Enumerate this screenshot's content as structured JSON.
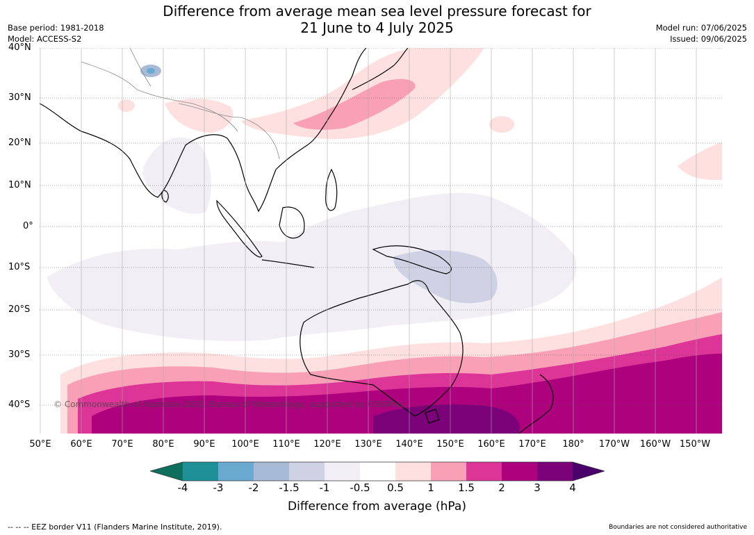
{
  "header": {
    "title": "Difference from average mean sea level pressure forecast for\n21 June to 4 July 2025",
    "base_period": "Base period: 1981-2018",
    "model": "Model: ACCESS-S2",
    "model_run": "Model run: 07/06/2025",
    "issued": "Issued: 09/06/2025"
  },
  "map": {
    "lat_ticks": [
      "40°N",
      "30°N",
      "20°N",
      "10°N",
      "0°",
      "10°S",
      "20°S",
      "30°S",
      "40°S"
    ],
    "lon_ticks": [
      "50°E",
      "60°E",
      "70°E",
      "80°E",
      "90°E",
      "100°E",
      "110°E",
      "120°E",
      "130°E",
      "140°E",
      "150°E",
      "160°E",
      "170°E",
      "180°",
      "170°W",
      "160°W",
      "150°W"
    ],
    "copyright": "© Commonwealth of Australia 2025, Bureau of Meteorology, supported by COSPPac"
  },
  "legend": {
    "title": "Difference from average (hPa)",
    "labels": [
      "-4",
      "-3",
      "-2",
      "-1.5",
      "-1",
      "-0.5",
      "0.5",
      "1",
      "1.5",
      "2",
      "3",
      "4"
    ],
    "colors": {
      "below_-4": "#0e6f5e",
      "-4_-3": "#1f8f98",
      "-3_-2": "#6aaad0",
      "-2_-1.5": "#a7bbd6",
      "-1.5_-1": "#cfd2e4",
      "-1_-0.5": "#f1eef5",
      "-0.5_0.5": "#ffffff",
      "0.5_1": "#fde0df",
      "1_1.5": "#f9a0b6",
      "1.5_2": "#dd3497",
      "2_3": "#ae017e",
      "3_4": "#7a0177",
      "above_4": "#49006a"
    }
  },
  "footer": {
    "eez_note": "--  --  -- EEZ border V11 (Flanders Marine Institute, 2019).",
    "boundaries_note": "Boundaries are not considered authoritative"
  }
}
